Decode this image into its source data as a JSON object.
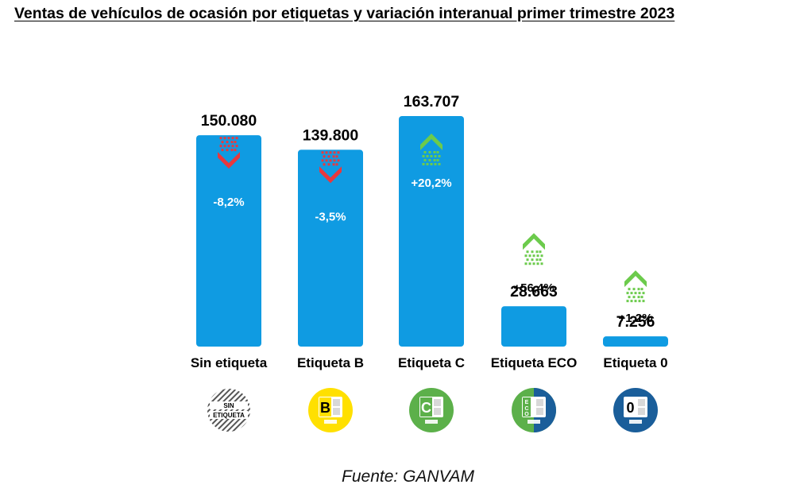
{
  "title": "Ventas de vehículos de ocasión por etiquetas y variación interanual primer trimestre 2023",
  "source": "Fuente: GANVAM",
  "colors": {
    "bar": "#0F9BE2",
    "up": "#6CCB4C",
    "down": "#E8383D",
    "text": "#000000",
    "sticker_b": "#FFE000",
    "sticker_c": "#5CB04A",
    "sticker_0": "#1A5E9A"
  },
  "chart_data": {
    "type": "bar",
    "title": "Ventas de vehículos de ocasión por etiquetas y variación interanual primer trimestre 2023",
    "xlabel": "",
    "ylabel": "",
    "ylim": [
      0,
      180000
    ],
    "grid": false,
    "legend": "none",
    "categories": [
      "Sin etiqueta",
      "Etiqueta B",
      "Etiqueta C",
      "Etiqueta ECO",
      "Etiqueta 0"
    ],
    "values": [
      150080,
      139800,
      163707,
      28663,
      7256
    ],
    "value_labels": [
      "150.080",
      "139.800",
      "163.707",
      "28.663",
      "7.256"
    ],
    "yoy_change_pct": [
      -8.2,
      -3.5,
      20.2,
      56.4,
      1.2
    ],
    "yoy_labels": [
      "-8,2%",
      "-3,5%",
      "+20,2%",
      "+56,4%",
      "+1,2%"
    ],
    "badges": [
      {
        "icon": "sin-etiqueta-badge-icon",
        "text": [
          "SIN",
          "ETIQUETA"
        ]
      },
      {
        "icon": "etiqueta-b-badge-icon",
        "letter": "B"
      },
      {
        "icon": "etiqueta-c-badge-icon",
        "letter": "C"
      },
      {
        "icon": "etiqueta-eco-badge-icon",
        "letter": "ECO"
      },
      {
        "icon": "etiqueta-0-badge-icon",
        "letter": "0"
      }
    ]
  }
}
